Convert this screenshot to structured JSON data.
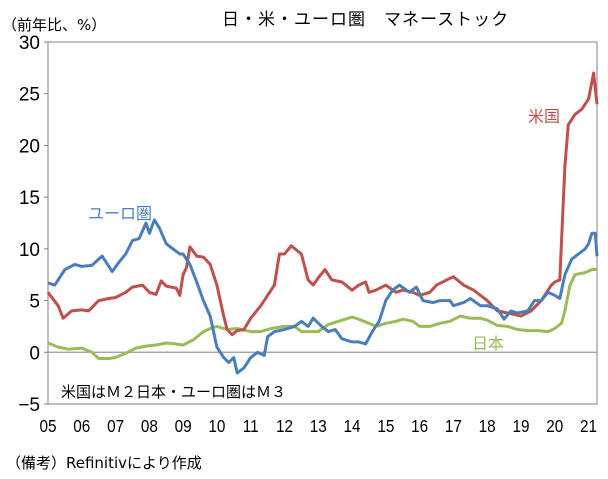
{
  "chart_data": {
    "type": "line",
    "title": "日・米・ユーロ圏　マネーストック",
    "ylabel": "（前年比、%）",
    "xlabel": "",
    "ylim": [
      -5,
      30
    ],
    "yticks": [
      "30",
      "25",
      "20",
      "15",
      "10",
      "5",
      "0",
      "−5"
    ],
    "xlim": [
      2005,
      2021.25
    ],
    "xticks": [
      "05",
      "06",
      "07",
      "08",
      "09",
      "10",
      "11",
      "12",
      "13",
      "14",
      "15",
      "16",
      "17",
      "18",
      "19",
      "20",
      "21"
    ],
    "grid": false,
    "annotation": "米国はＭ２日本・ユーロ圏はＭ３",
    "source": "（備考）Refinitivにより作成",
    "series": [
      {
        "name": "米国",
        "color": "#C0504D",
        "x": [
          2005.0,
          2005.3,
          2005.45,
          2005.7,
          2006.0,
          2006.2,
          2006.5,
          2006.8,
          2007.0,
          2007.3,
          2007.5,
          2007.8,
          2008.0,
          2008.2,
          2008.35,
          2008.5,
          2008.8,
          2008.9,
          2009.0,
          2009.1,
          2009.2,
          2009.4,
          2009.6,
          2009.8,
          2010.0,
          2010.2,
          2010.3,
          2010.45,
          2010.6,
          2010.8,
          2011.0,
          2011.3,
          2011.5,
          2011.7,
          2011.85,
          2012.0,
          2012.2,
          2012.5,
          2012.7,
          2012.85,
          2013.0,
          2013.2,
          2013.4,
          2013.7,
          2014.0,
          2014.2,
          2014.4,
          2014.5,
          2014.7,
          2015.0,
          2015.3,
          2015.5,
          2015.8,
          2016.0,
          2016.3,
          2016.5,
          2016.8,
          2017.0,
          2017.3,
          2017.6,
          2018.0,
          2018.3,
          2018.6,
          2019.0,
          2019.3,
          2019.6,
          2019.9,
          2020.0,
          2020.15,
          2020.3,
          2020.4,
          2020.6,
          2020.8,
          2021.0,
          2021.15,
          2021.25
        ],
        "y": [
          5.8,
          4.5,
          3.3,
          4.0,
          4.1,
          4.0,
          5.0,
          5.2,
          5.3,
          5.8,
          6.3,
          6.5,
          5.8,
          5.6,
          6.9,
          6.4,
          6.2,
          5.5,
          7.5,
          8.2,
          10.2,
          9.3,
          9.2,
          8.5,
          6.5,
          3.5,
          2.2,
          1.7,
          2.1,
          2.2,
          3.3,
          4.5,
          5.5,
          6.5,
          9.5,
          9.5,
          10.3,
          9.5,
          7.0,
          6.5,
          7.2,
          8.0,
          7.0,
          6.8,
          6.0,
          6.5,
          6.8,
          5.8,
          6.0,
          6.5,
          5.8,
          6.0,
          5.8,
          5.5,
          5.8,
          6.5,
          7.0,
          7.3,
          6.5,
          6.0,
          5.0,
          4.0,
          3.8,
          3.5,
          4.0,
          5.0,
          6.5,
          6.8,
          7.0,
          18.0,
          22.0,
          23.0,
          23.5,
          24.5,
          27.0,
          24.0
        ]
      },
      {
        "name": "ユーロ圏",
        "color": "#4A7EBB",
        "x": [
          2005.0,
          2005.2,
          2005.5,
          2005.8,
          2006.0,
          2006.3,
          2006.6,
          2006.9,
          2007.1,
          2007.3,
          2007.5,
          2007.7,
          2007.9,
          2008.0,
          2008.15,
          2008.3,
          2008.5,
          2008.7,
          2008.9,
          2009.0,
          2009.2,
          2009.4,
          2009.6,
          2009.8,
          2010.0,
          2010.2,
          2010.35,
          2010.5,
          2010.6,
          2010.8,
          2011.0,
          2011.2,
          2011.4,
          2011.5,
          2011.7,
          2012.0,
          2012.3,
          2012.5,
          2012.7,
          2012.85,
          2013.1,
          2013.3,
          2013.5,
          2013.7,
          2014.0,
          2014.2,
          2014.4,
          2014.6,
          2014.8,
          2015.0,
          2015.2,
          2015.4,
          2015.7,
          2015.9,
          2016.1,
          2016.4,
          2016.6,
          2016.9,
          2017.0,
          2017.3,
          2017.5,
          2017.8,
          2018.0,
          2018.3,
          2018.5,
          2018.7,
          2018.9,
          2019.2,
          2019.4,
          2019.6,
          2019.8,
          2020.0,
          2020.15,
          2020.3,
          2020.5,
          2020.7,
          2020.9,
          2021.0,
          2021.1,
          2021.2,
          2021.25
        ],
        "y": [
          6.7,
          6.5,
          8.0,
          8.5,
          8.3,
          8.4,
          9.3,
          7.8,
          8.7,
          9.5,
          10.8,
          11.0,
          12.5,
          11.5,
          12.8,
          12.0,
          10.5,
          10.0,
          9.5,
          9.5,
          8.5,
          6.8,
          5.0,
          3.5,
          0.5,
          -0.5,
          -1.0,
          -0.5,
          -2.0,
          -1.5,
          -0.5,
          0.0,
          -0.3,
          1.5,
          2.0,
          2.2,
          2.5,
          3.0,
          2.5,
          3.3,
          2.5,
          2.0,
          2.2,
          1.3,
          1.0,
          1.0,
          0.8,
          2.0,
          3.0,
          5.0,
          6.0,
          6.5,
          5.8,
          6.3,
          5.0,
          4.8,
          5.0,
          5.0,
          4.5,
          4.8,
          5.2,
          4.5,
          4.5,
          4.2,
          3.2,
          4.0,
          3.8,
          4.0,
          5.0,
          5.0,
          5.8,
          5.5,
          5.2,
          7.5,
          9.0,
          9.5,
          10.0,
          10.5,
          11.5,
          11.5,
          9.3
        ]
      },
      {
        "name": "日本",
        "color": "#9BBB59",
        "x": [
          2005.0,
          2005.3,
          2005.6,
          2006.0,
          2006.3,
          2006.5,
          2006.8,
          2007.0,
          2007.3,
          2007.6,
          2007.9,
          2008.2,
          2008.5,
          2008.8,
          2009.0,
          2009.3,
          2009.6,
          2009.8,
          2010.0,
          2010.3,
          2010.6,
          2011.0,
          2011.3,
          2011.6,
          2012.0,
          2012.3,
          2012.5,
          2012.8,
          2013.0,
          2013.3,
          2013.6,
          2014.0,
          2014.2,
          2014.5,
          2014.7,
          2015.0,
          2015.3,
          2015.5,
          2015.8,
          2016.0,
          2016.3,
          2016.6,
          2016.9,
          2017.2,
          2017.5,
          2017.8,
          2018.0,
          2018.3,
          2018.6,
          2018.9,
          2019.2,
          2019.5,
          2019.8,
          2020.0,
          2020.2,
          2020.3,
          2020.45,
          2020.6,
          2020.9,
          2021.1,
          2021.25
        ],
        "y": [
          0.9,
          0.5,
          0.3,
          0.4,
          0.0,
          -0.6,
          -0.6,
          -0.5,
          -0.1,
          0.4,
          0.6,
          0.7,
          0.9,
          0.8,
          0.7,
          1.2,
          2.0,
          2.3,
          2.5,
          2.2,
          2.3,
          2.0,
          2.0,
          2.3,
          2.5,
          2.5,
          2.0,
          2.0,
          2.0,
          2.7,
          3.0,
          3.4,
          3.2,
          2.8,
          2.5,
          2.8,
          3.0,
          3.2,
          3.0,
          2.5,
          2.5,
          2.8,
          3.0,
          3.5,
          3.3,
          3.3,
          3.1,
          2.6,
          2.5,
          2.2,
          2.1,
          2.1,
          2.0,
          2.3,
          2.8,
          4.0,
          6.5,
          7.5,
          7.7,
          8.0,
          8.0
        ]
      }
    ]
  }
}
